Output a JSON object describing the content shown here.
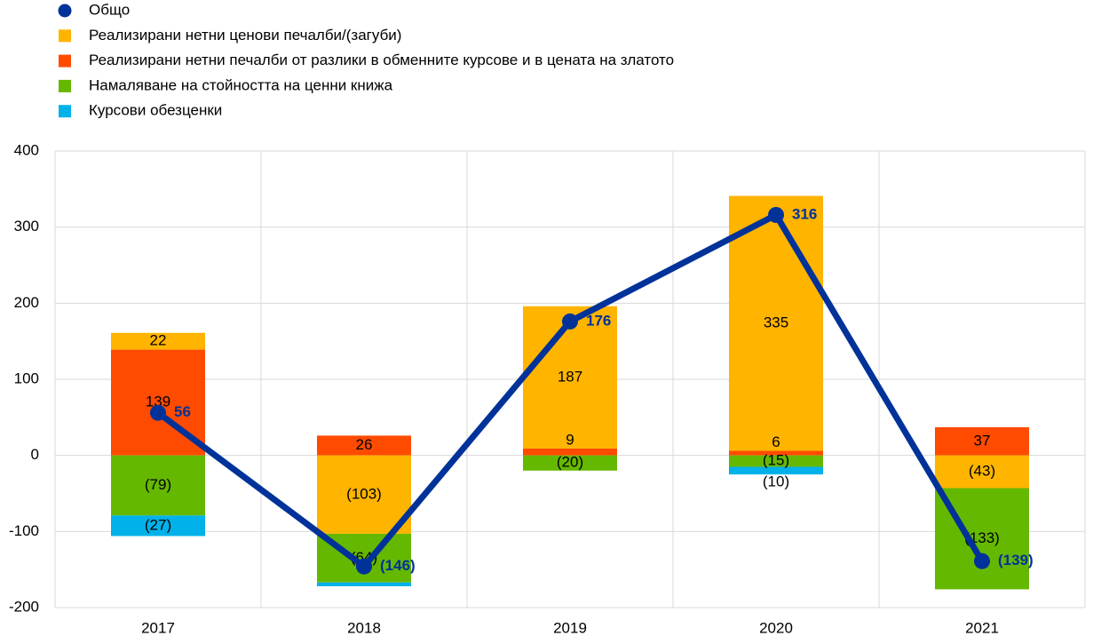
{
  "chart_data": {
    "type": "stacked-bar-line",
    "categories": [
      "2017",
      "2018",
      "2019",
      "2020",
      "2021"
    ],
    "series": [
      {
        "name": "Общо",
        "type": "line",
        "color": "#003299",
        "values": [
          56,
          -146,
          176,
          316,
          -139
        ],
        "value_labels": [
          "56",
          "(146)",
          "176",
          "316",
          "(139)"
        ]
      },
      {
        "name": "Реализирани нетни ценови печалби/(загуби)",
        "type": "bar",
        "color": "#ffb400",
        "values": [
          22,
          -103,
          187,
          335,
          -43
        ],
        "value_labels": [
          "22",
          "(103)",
          "187",
          "335",
          "(43)"
        ]
      },
      {
        "name": "Реализирани нетни печалби от разлики в обменните курсове и в цената на златото",
        "type": "bar",
        "color": "#ff4b00",
        "values": [
          139,
          26,
          9,
          6,
          37
        ],
        "value_labels": [
          "139",
          "26",
          "9",
          "6",
          "37"
        ]
      },
      {
        "name": "Намаляване на стойността на ценни книжа",
        "type": "bar",
        "color": "#65b800",
        "values": [
          -79,
          -64,
          -20,
          -15,
          -133
        ],
        "value_labels": [
          "(79)",
          "(64)",
          "(20)",
          "(15)",
          "(133)"
        ]
      },
      {
        "name": "Курсови обезценки",
        "type": "bar",
        "color": "#00b1ea",
        "values": [
          -27,
          -5,
          0,
          -10,
          0
        ],
        "value_labels": [
          "(27)",
          null,
          null,
          "(10)",
          null
        ]
      }
    ],
    "ylim": [
      -200,
      400
    ],
    "yticks": [
      400,
      300,
      200,
      100,
      0,
      -100,
      -200
    ],
    "grid": true
  }
}
